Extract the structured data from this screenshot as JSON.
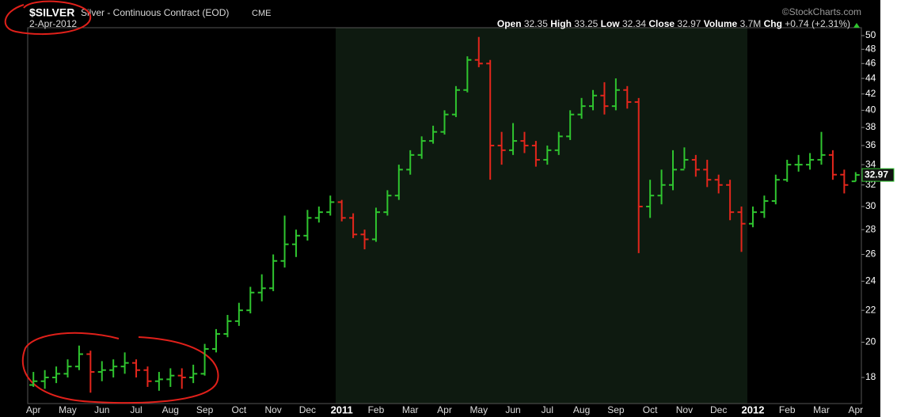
{
  "chart_data": {
    "type": "ohlc",
    "symbol": "$SILVER",
    "title": "Silver - Continuous Contract (EOD)",
    "exchange": "CME",
    "date": "2-Apr-2012",
    "source": "©StockCharts.com",
    "quote": {
      "open_label": "Open",
      "open": "32.35",
      "high_label": "High",
      "high": "33.25",
      "low_label": "Low",
      "low": "32.34",
      "close_label": "Close",
      "close": "32.97",
      "volume_label": "Volume",
      "volume": "3.7M",
      "chg_label": "Chg",
      "chg": "+0.74 (+2.31%)"
    },
    "last_price": 32.97,
    "log_scale": true,
    "grid": false,
    "up_color": "#2fc42f",
    "down_color": "#e3261c",
    "ylim": [
      16.65,
      51.2
    ],
    "yticks": [
      18,
      20,
      22,
      24,
      26,
      28,
      30,
      32,
      34,
      36,
      38,
      40,
      42,
      44,
      46,
      48,
      50
    ],
    "categories": [
      "Apr",
      null,
      null,
      "May",
      null,
      null,
      "Jun",
      null,
      null,
      "Jul",
      null,
      null,
      "Aug",
      null,
      null,
      "Sep",
      null,
      null,
      "Oct",
      null,
      null,
      "Nov",
      null,
      null,
      "Dec",
      null,
      null,
      "2011",
      null,
      null,
      "Feb",
      null,
      null,
      "Mar",
      null,
      null,
      "Apr",
      null,
      null,
      "May",
      null,
      null,
      "Jun",
      null,
      null,
      "Jul",
      null,
      null,
      "Aug",
      null,
      null,
      "Sep",
      null,
      null,
      "Oct",
      null,
      null,
      "Nov",
      null,
      null,
      "Dec",
      null,
      null,
      "2012",
      null,
      null,
      "Feb",
      null,
      null,
      "Mar",
      null,
      null,
      "Apr"
    ],
    "open": [
      17.6,
      17.8,
      18.0,
      18.2,
      18.6,
      19.3,
      18.3,
      18.4,
      18.6,
      18.8,
      18.4,
      17.8,
      17.9,
      18.1,
      18.0,
      18.2,
      19.6,
      20.5,
      21.3,
      22.0,
      23.2,
      23.5,
      25.5,
      26.8,
      27.5,
      29.0,
      29.5,
      30.4,
      29.0,
      27.6,
      27.2,
      29.5,
      31.0,
      33.5,
      35.0,
      36.5,
      37.5,
      39.5,
      42.5,
      46.5,
      46.0,
      36.0,
      35.5,
      36.5,
      36.0,
      34.5,
      35.5,
      37.0,
      39.5,
      40.5,
      41.8,
      40.5,
      42.5,
      41.0,
      30.0,
      31.0,
      32.0,
      33.5,
      34.5,
      33.5,
      32.5,
      32.0,
      29.5,
      28.5,
      29.5,
      30.5,
      32.5,
      34.0,
      34.0,
      34.5,
      35.0,
      33.0,
      32.35
    ],
    "high": [
      18.3,
      18.4,
      18.6,
      19.0,
      19.8,
      19.5,
      18.9,
      19.0,
      19.4,
      19.0,
      18.6,
      18.3,
      18.5,
      18.5,
      18.7,
      19.9,
      20.8,
      21.7,
      22.5,
      23.6,
      24.5,
      26.0,
      29.2,
      28.0,
      29.7,
      30.0,
      31.0,
      30.6,
      29.4,
      28.0,
      29.9,
      31.5,
      34.0,
      35.5,
      37.0,
      38.2,
      40.0,
      43.0,
      47.0,
      49.8,
      46.5,
      37.5,
      38.5,
      37.5,
      36.5,
      36.0,
      37.5,
      40.0,
      41.5,
      42.5,
      43.5,
      44.0,
      43.0,
      41.5,
      32.5,
      33.5,
      35.5,
      35.8,
      35.0,
      34.5,
      33.0,
      32.5,
      30.0,
      30.0,
      31.0,
      33.0,
      34.5,
      35.0,
      35.2,
      37.5,
      35.5,
      33.5,
      33.25
    ],
    "low": [
      17.5,
      17.4,
      17.7,
      18.0,
      18.4,
      17.2,
      17.8,
      18.0,
      18.2,
      18.0,
      17.5,
      17.3,
      17.5,
      17.4,
      17.7,
      18.1,
      19.4,
      20.3,
      21.0,
      21.8,
      22.6,
      23.3,
      25.0,
      25.8,
      27.1,
      28.6,
      29.2,
      28.7,
      27.3,
      26.4,
      27.0,
      29.2,
      30.6,
      33.0,
      34.6,
      36.2,
      37.2,
      39.2,
      42.2,
      45.5,
      32.5,
      34.0,
      35.0,
      35.2,
      33.8,
      34.0,
      35.0,
      36.6,
      39.0,
      40.0,
      39.5,
      40.0,
      40.2,
      26.1,
      29.0,
      30.2,
      31.5,
      33.6,
      32.8,
      31.8,
      31.2,
      28.8,
      26.2,
      28.2,
      29.0,
      30.2,
      32.3,
      33.3,
      33.5,
      34.0,
      32.5,
      31.2,
      32.34
    ],
    "close": [
      17.8,
      18.0,
      18.2,
      18.6,
      19.3,
      18.3,
      18.4,
      18.6,
      18.8,
      18.4,
      17.8,
      17.9,
      18.1,
      18.0,
      18.2,
      19.6,
      20.5,
      21.3,
      22.0,
      23.2,
      23.5,
      25.5,
      26.8,
      27.5,
      29.0,
      29.5,
      30.4,
      29.0,
      27.6,
      27.2,
      29.5,
      31.0,
      33.5,
      35.0,
      36.5,
      37.5,
      39.5,
      42.5,
      46.5,
      46.0,
      36.0,
      35.5,
      36.5,
      36.0,
      34.5,
      35.5,
      37.0,
      39.5,
      40.5,
      41.8,
      40.5,
      42.5,
      41.0,
      30.0,
      31.0,
      32.0,
      33.5,
      34.5,
      33.5,
      32.5,
      32.0,
      29.5,
      28.5,
      29.5,
      30.5,
      32.5,
      34.0,
      34.0,
      34.5,
      35.0,
      33.0,
      32.0,
      32.97
    ]
  }
}
